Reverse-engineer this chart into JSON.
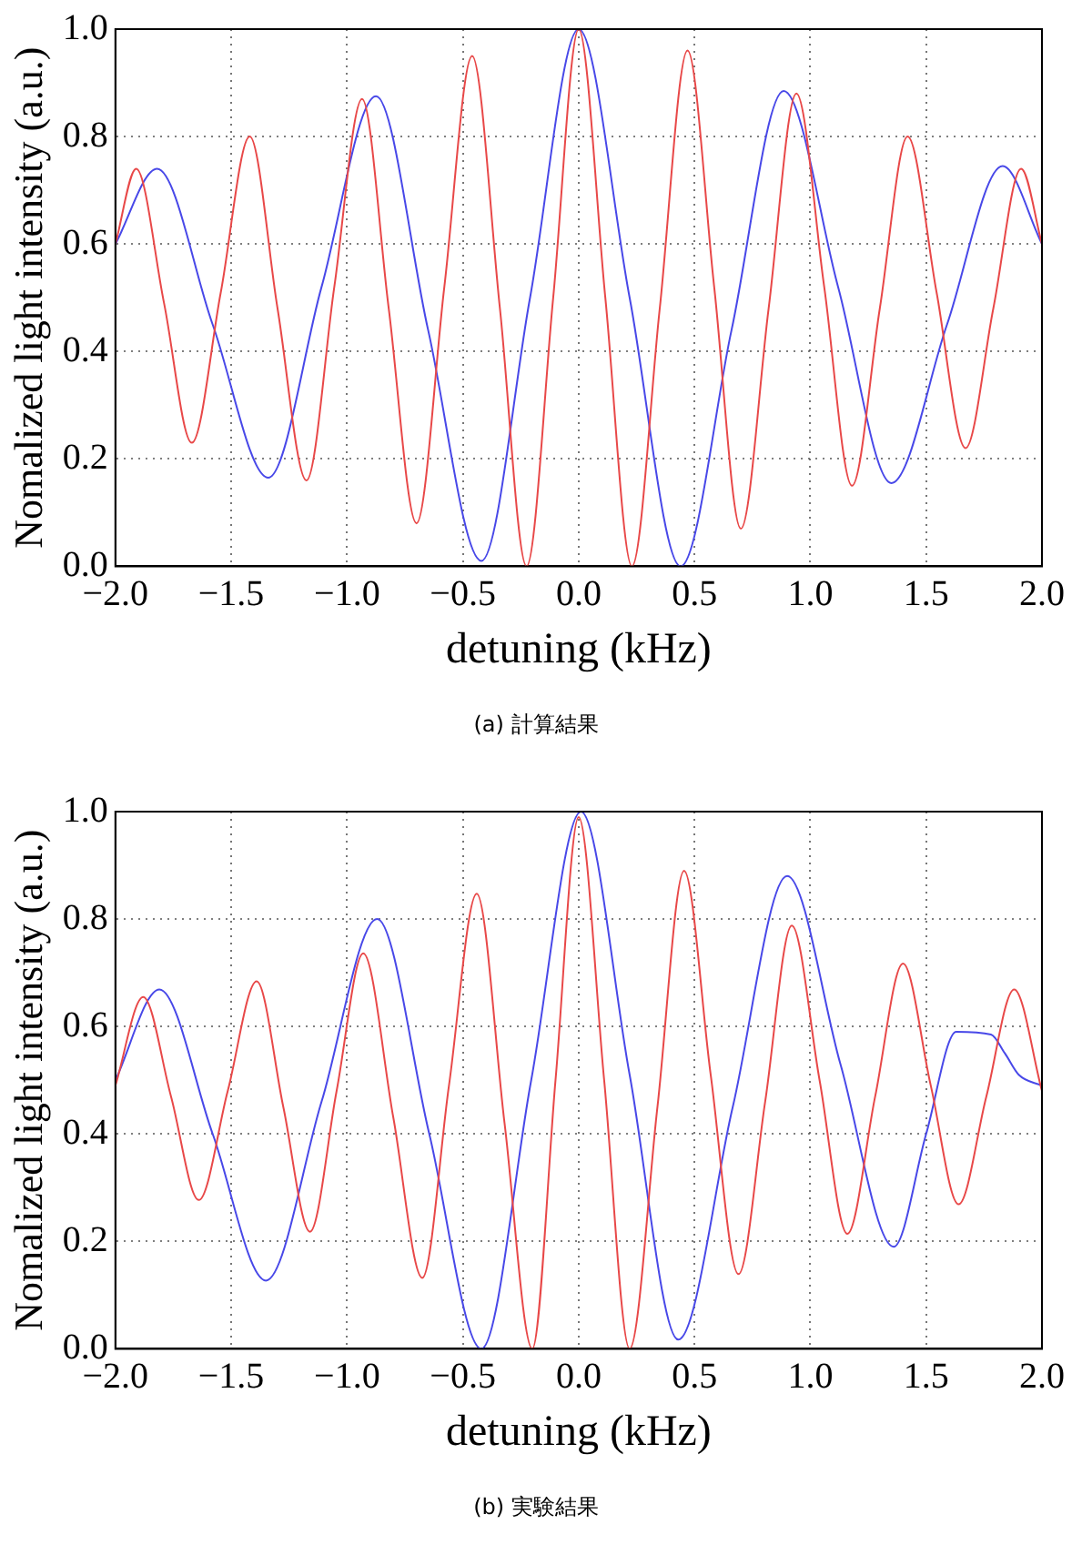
{
  "chart_data": [
    {
      "type": "line",
      "xlabel": "detuning (kHz)",
      "ylabel": "Nomalized light intensity (a.u.)",
      "annotations": [
        "(a) 計算結果"
      ],
      "xlim": [
        -2,
        2
      ],
      "xticks": [
        {
          "value": -2,
          "label": "−2.0"
        },
        {
          "value": -1.5,
          "label": "−1.5"
        },
        {
          "value": -1,
          "label": "−1.0"
        },
        {
          "value": -0.5,
          "label": "−0.5"
        },
        {
          "value": 0,
          "label": "0.0"
        },
        {
          "value": 0.5,
          "label": "0.5"
        },
        {
          "value": 1,
          "label": "1.0"
        },
        {
          "value": 1.5,
          "label": "1.5"
        },
        {
          "value": 2,
          "label": "2.0"
        }
      ],
      "ylim": [
        0,
        1
      ],
      "yticks": [
        {
          "value": 0,
          "label": "0.0"
        },
        {
          "value": 0.2,
          "label": "0.2"
        },
        {
          "value": 0.4,
          "label": "0.4"
        },
        {
          "value": 0.6,
          "label": "0.6"
        },
        {
          "value": 0.8,
          "label": "0.8"
        },
        {
          "value": 1,
          "label": "1.0"
        }
      ],
      "grid": true,
      "legend": false,
      "marker": "none",
      "line_style": "solid",
      "series": [
        {
          "color": "#e84848",
          "x": [
            -2.0,
            -1.91,
            -1.79,
            -1.67,
            -1.545,
            -1.42,
            -1.3,
            -1.175,
            -1.055,
            -0.935,
            -0.82,
            -0.7,
            -0.58,
            -0.46,
            -0.34,
            -0.225,
            -0.11,
            0.0,
            0.115,
            0.23,
            0.35,
            0.47,
            0.585,
            0.7,
            0.82,
            0.94,
            1.06,
            1.18,
            1.3,
            1.42,
            1.545,
            1.67,
            1.79,
            1.91,
            2.0
          ],
          "values": [
            0.6,
            0.74,
            0.49,
            0.23,
            0.51,
            0.8,
            0.48,
            0.16,
            0.52,
            0.87,
            0.48,
            0.08,
            0.52,
            0.95,
            0.48,
            0.0,
            0.5,
            1.0,
            0.5,
            0.0,
            0.48,
            0.96,
            0.52,
            0.07,
            0.48,
            0.88,
            0.52,
            0.15,
            0.48,
            0.8,
            0.51,
            0.22,
            0.48,
            0.74,
            0.6
          ]
        },
        {
          "color": "#4848e8",
          "x": [
            -2.0,
            -1.82,
            -1.58,
            -1.34,
            -1.11,
            -0.875,
            -0.65,
            -0.42,
            -0.21,
            0.0,
            0.22,
            0.44,
            0.66,
            0.885,
            1.12,
            1.35,
            1.59,
            1.83,
            2.0
          ],
          "values": [
            0.6,
            0.74,
            0.45,
            0.165,
            0.52,
            0.875,
            0.44,
            0.01,
            0.5,
            1.0,
            0.5,
            0.0,
            0.44,
            0.885,
            0.52,
            0.155,
            0.45,
            0.745,
            0.6
          ]
        }
      ]
    },
    {
      "type": "line",
      "xlabel": "detuning (kHz)",
      "ylabel": "Nomalized light intensity (a.u.)",
      "annotations": [
        "(b) 実験結果"
      ],
      "xlim": [
        -2,
        2
      ],
      "xticks": [
        {
          "value": -2,
          "label": "−2.0"
        },
        {
          "value": -1.5,
          "label": "−1.5"
        },
        {
          "value": -1,
          "label": "−1.0"
        },
        {
          "value": -0.5,
          "label": "−0.5"
        },
        {
          "value": 0,
          "label": "0.0"
        },
        {
          "value": 0.5,
          "label": "0.5"
        },
        {
          "value": 1,
          "label": "1.0"
        },
        {
          "value": 1.5,
          "label": "1.5"
        },
        {
          "value": 2,
          "label": "2.0"
        }
      ],
      "ylim": [
        0,
        1
      ],
      "yticks": [
        {
          "value": 0,
          "label": "0.0"
        },
        {
          "value": 0.2,
          "label": "0.2"
        },
        {
          "value": 0.4,
          "label": "0.4"
        },
        {
          "value": 0.6,
          "label": "0.6"
        },
        {
          "value": 0.8,
          "label": "0.8"
        },
        {
          "value": 1,
          "label": "1.0"
        }
      ],
      "grid": true,
      "legend": false,
      "marker": "none",
      "line_style": "solid",
      "series": [
        {
          "color": "#e84848",
          "x": [
            -2.0,
            -1.88,
            -1.76,
            -1.64,
            -1.515,
            -1.39,
            -1.275,
            -1.16,
            -1.045,
            -0.93,
            -0.8,
            -0.675,
            -0.56,
            -0.44,
            -0.32,
            -0.2,
            -0.1,
            0.0,
            0.11,
            0.22,
            0.34,
            0.455,
            0.57,
            0.69,
            0.805,
            0.92,
            1.04,
            1.16,
            1.28,
            1.4,
            1.52,
            1.64,
            1.76,
            1.88,
            2.0
          ],
          "values": [
            0.49,
            0.655,
            0.47,
            0.277,
            0.48,
            0.684,
            0.45,
            0.218,
            0.48,
            0.736,
            0.43,
            0.132,
            0.49,
            0.847,
            0.42,
            0.0,
            0.5,
            0.99,
            0.5,
            0.0,
            0.45,
            0.89,
            0.51,
            0.139,
            0.46,
            0.788,
            0.5,
            0.214,
            0.47,
            0.717,
            0.49,
            0.269,
            0.47,
            0.669,
            0.48
          ]
        },
        {
          "color": "#4848e8",
          "x": [
            -2.0,
            -1.81,
            -1.58,
            -1.35,
            -1.11,
            -0.87,
            -0.645,
            -0.42,
            -0.205,
            0.01,
            0.22,
            0.43,
            0.665,
            0.9,
            1.13,
            1.36,
            1.5,
            1.63,
            1.78,
            1.84,
            1.9,
            2.0
          ],
          "values": [
            0.5,
            0.669,
            0.4,
            0.127,
            0.46,
            0.8,
            0.4,
            0.0,
            0.5,
            1.0,
            0.51,
            0.017,
            0.45,
            0.88,
            0.53,
            0.19,
            0.4,
            0.59,
            0.585,
            0.55,
            0.51,
            0.49
          ]
        }
      ]
    }
  ]
}
